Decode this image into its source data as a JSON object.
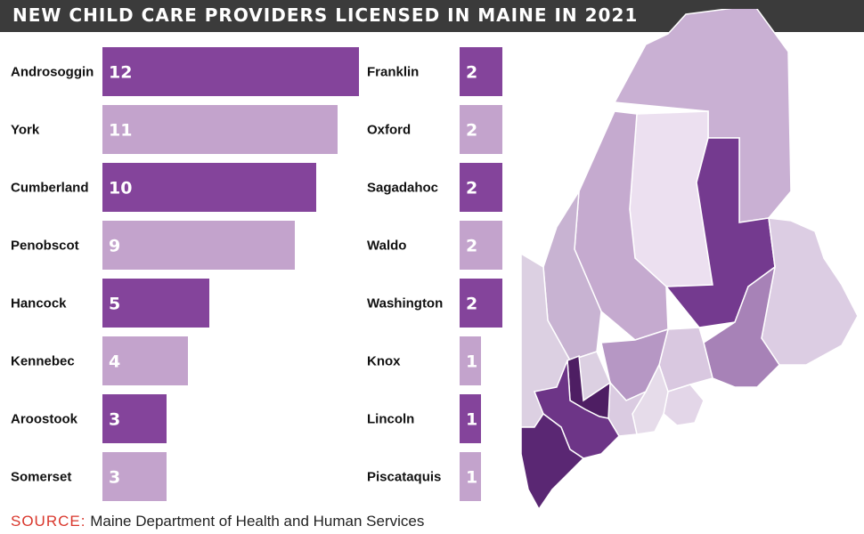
{
  "title": "NEW CHILD CARE PROVIDERS LICENSED IN MAINE IN 2021",
  "source_label": "SOURCE:",
  "source_text": "Maine Department of Health and Human Services",
  "colors": {
    "dark": "#84449b",
    "light": "#c3a3cc",
    "title_bar": "#3b3b3b",
    "source_label": "#d9362b"
  },
  "chart_data": {
    "type": "bar",
    "orientation": "horizontal",
    "title": "NEW CHILD CARE PROVIDERS LICENSED IN MAINE IN 2021",
    "xlabel": "",
    "ylabel": "",
    "grid": false,
    "xlim": [
      0,
      12
    ],
    "columns": [
      {
        "categories": [
          "Androsoggin",
          "York",
          "Cumberland",
          "Penobscot",
          "Hancock",
          "Kennebec",
          "Aroostook",
          "Somerset"
        ],
        "values": [
          12,
          11,
          10,
          9,
          5,
          4,
          3,
          3
        ]
      },
      {
        "categories": [
          "Franklin",
          "Oxford",
          "Sagadahoc",
          "Waldo",
          "Washington",
          "Knox",
          "Lincoln",
          "Piscataquis"
        ],
        "values": [
          2,
          2,
          2,
          2,
          2,
          1,
          1,
          1
        ]
      }
    ]
  },
  "map": {
    "regions": [
      {
        "name": "aroostook",
        "fill": "#c9b0d3"
      },
      {
        "name": "piscataquis",
        "fill": "#ece0f0"
      },
      {
        "name": "penobscot",
        "fill": "#743a8f"
      },
      {
        "name": "somerset",
        "fill": "#c5aacf"
      },
      {
        "name": "franklin",
        "fill": "#c8b3d2"
      },
      {
        "name": "oxford",
        "fill": "#dcd0e2"
      },
      {
        "name": "washington",
        "fill": "#dccde3"
      },
      {
        "name": "hancock",
        "fill": "#a782b7"
      },
      {
        "name": "waldo",
        "fill": "#d9c8e0"
      },
      {
        "name": "kennebec",
        "fill": "#b697c4"
      },
      {
        "name": "knox",
        "fill": "#e3d6e8"
      },
      {
        "name": "lincoln",
        "fill": "#e6dcea"
      },
      {
        "name": "sagadahoc",
        "fill": "#dacbe1"
      },
      {
        "name": "androscoggin",
        "fill": "#4e1e63"
      },
      {
        "name": "cumberland",
        "fill": "#6d3587"
      },
      {
        "name": "york",
        "fill": "#5a2773"
      }
    ]
  }
}
